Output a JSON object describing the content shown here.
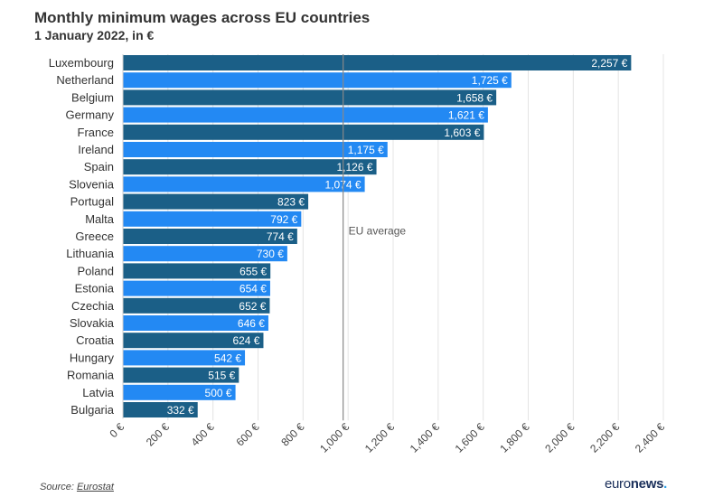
{
  "chart_data": {
    "type": "bar",
    "orientation": "horizontal",
    "title": "Monthly minimum wages across EU countries",
    "subtitle": "1 January 2022, in €",
    "categories": [
      "Luxembourg",
      "Netherland",
      "Belgium",
      "Germany",
      "France",
      "Ireland",
      "Spain",
      "Slovenia",
      "Portugal",
      "Malta",
      "Greece",
      "Lithuania",
      "Poland",
      "Estonia",
      "Czechia",
      "Slovakia",
      "Croatia",
      "Hungary",
      "Romania",
      "Latvia",
      "Bulgaria"
    ],
    "values": [
      2257,
      1725,
      1658,
      1621,
      1603,
      1175,
      1126,
      1074,
      823,
      792,
      774,
      730,
      655,
      654,
      652,
      646,
      624,
      542,
      515,
      500,
      332
    ],
    "value_labels": [
      "2,257 €",
      "1,725 €",
      "1,658 €",
      "1,621 €",
      "1,603 €",
      "1,175 €",
      "1,126 €",
      "1,074 €",
      "823 €",
      "792 €",
      "774 €",
      "730 €",
      "655 €",
      "654 €",
      "652 €",
      "646 €",
      "624 €",
      "542 €",
      "515 €",
      "500 €",
      "332 €"
    ],
    "bar_colors": [
      "#1b5f87",
      "#2389f3"
    ],
    "xlim": [
      0,
      2400
    ],
    "x_ticks": [
      0,
      200,
      400,
      600,
      800,
      1000,
      1200,
      1400,
      1600,
      1800,
      2000,
      2200,
      2400
    ],
    "x_tick_labels": [
      "0 €",
      "200 €",
      "400 €",
      "600 €",
      "800 €",
      "1,000 €",
      "1,200 €",
      "1,400 €",
      "1,600 €",
      "1,800 €",
      "2,000 €",
      "2,200 €",
      "2,400 €"
    ],
    "grid": true,
    "reference_line": {
      "label": "EU average",
      "value": 978,
      "color": "#888888"
    }
  },
  "footer": {
    "source_prefix": "Source: ",
    "source_link": "Eurostat",
    "logo_main": "euro",
    "logo_bold": "news",
    "logo_dot": "."
  }
}
